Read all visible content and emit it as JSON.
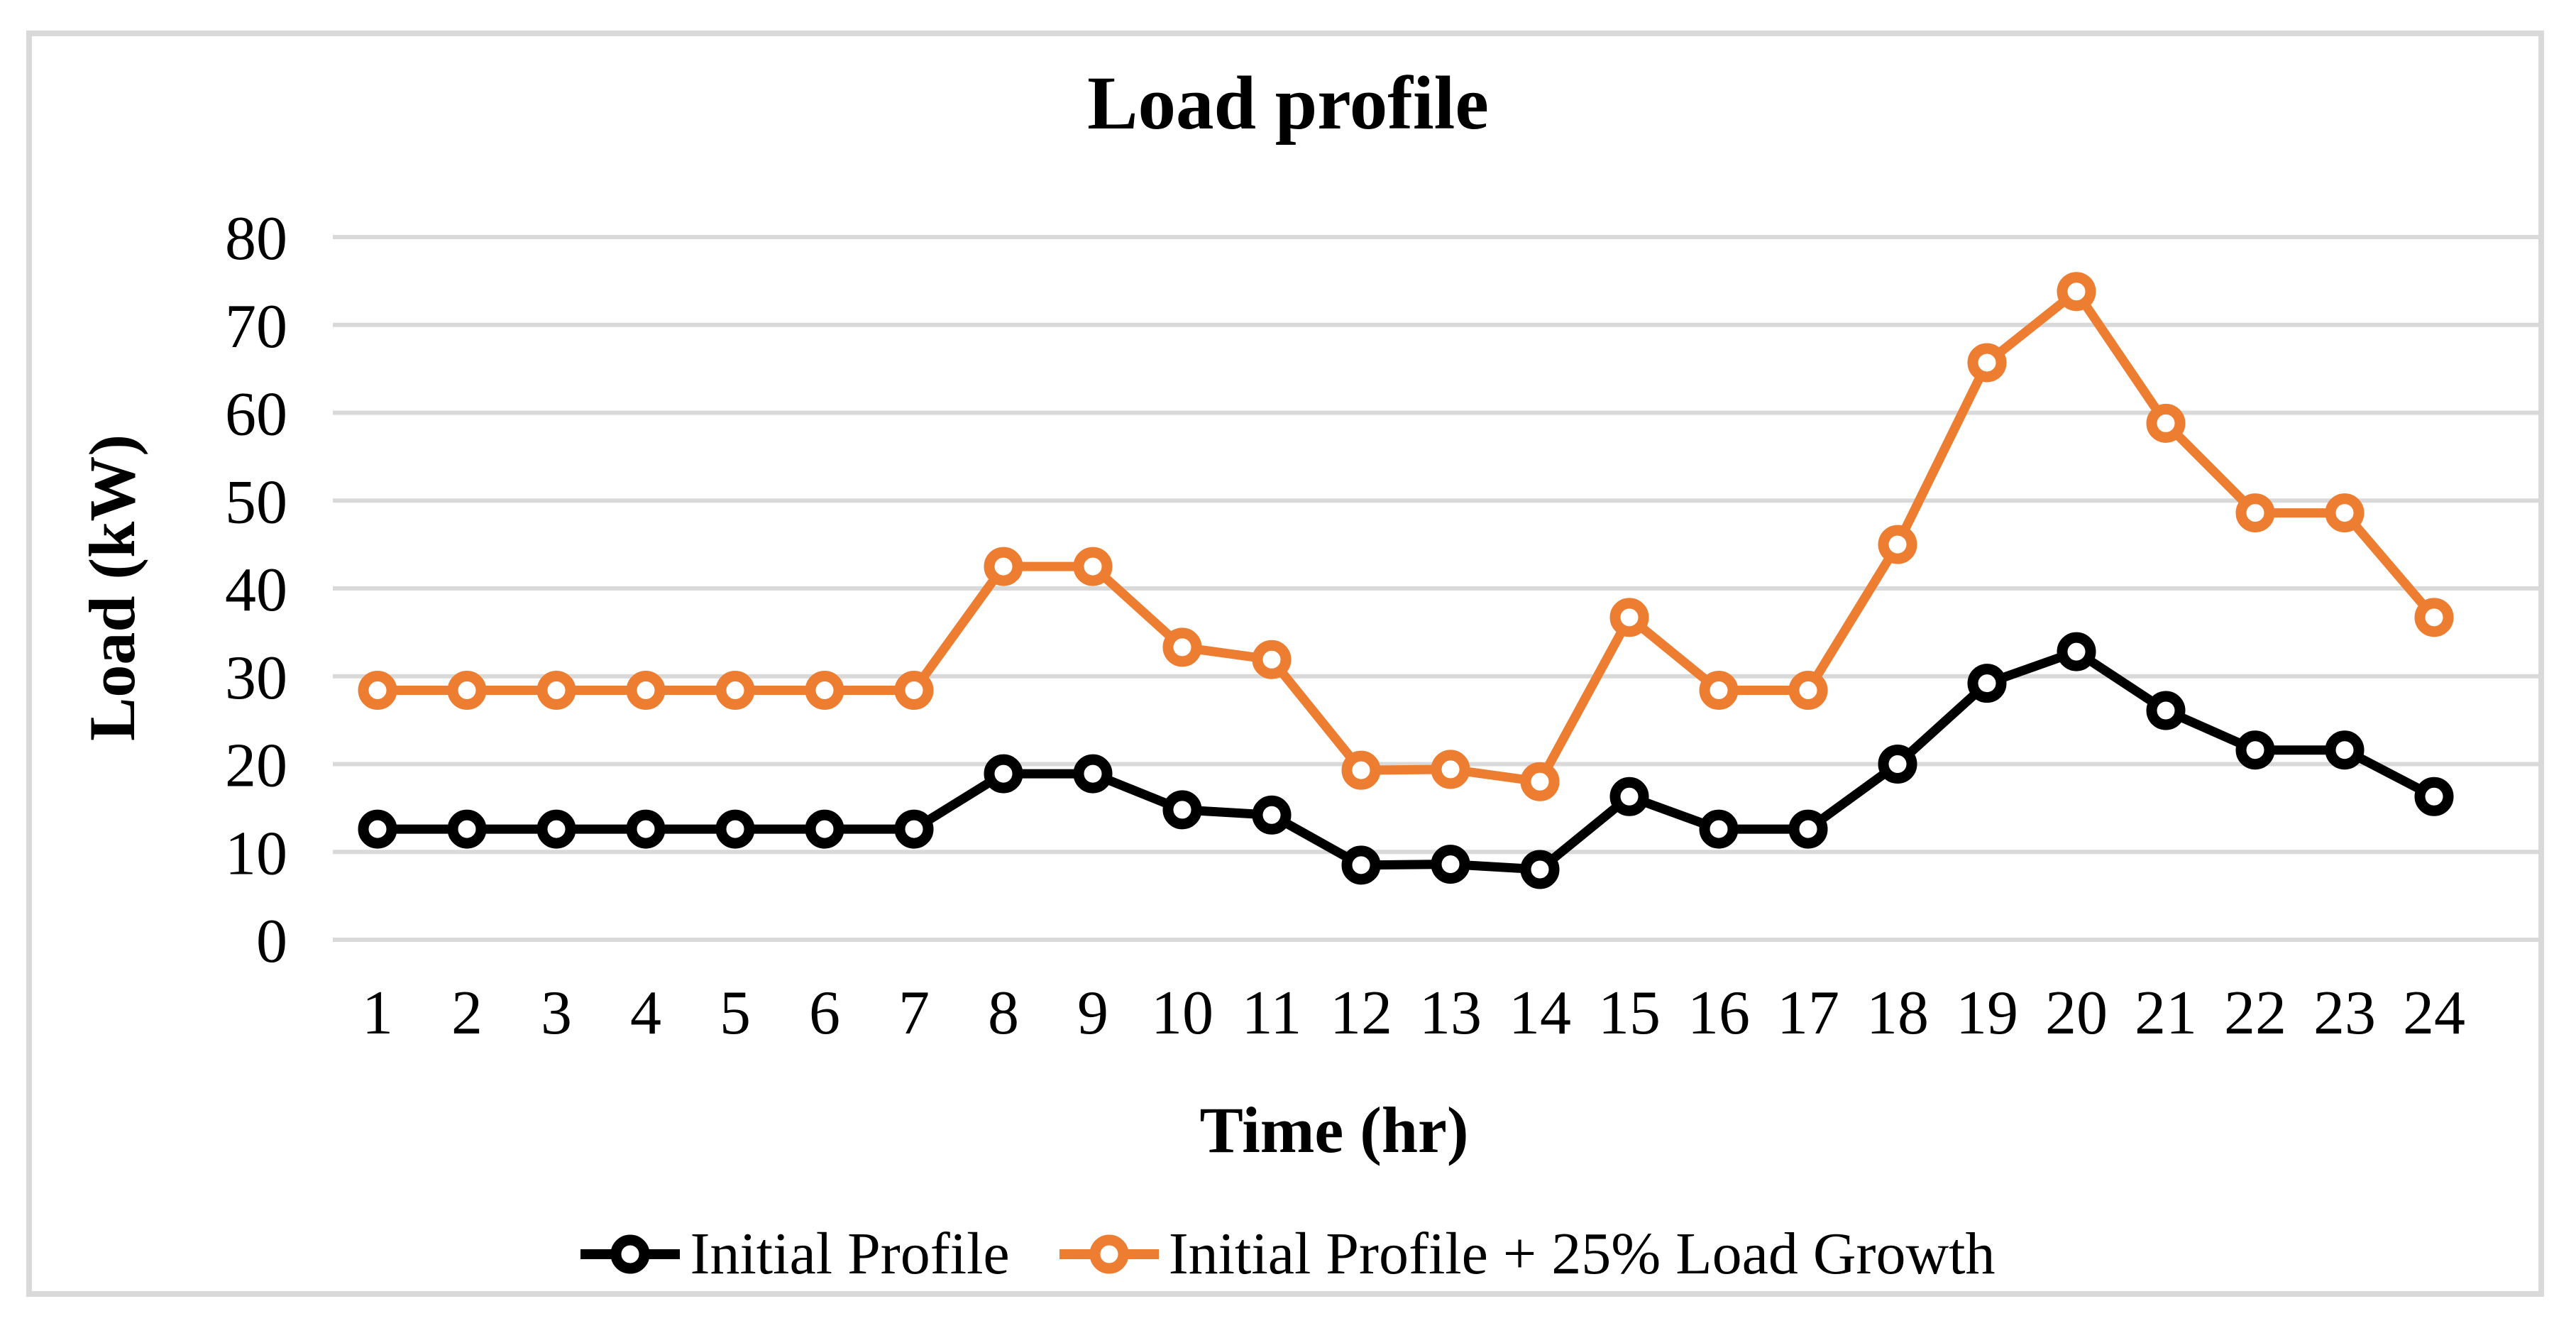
{
  "chart_data": {
    "type": "line",
    "title": "Load profile",
    "xlabel": "Time (hr)",
    "ylabel": "Load (kW)",
    "categories": [
      1,
      2,
      3,
      4,
      5,
      6,
      7,
      8,
      9,
      10,
      11,
      12,
      13,
      14,
      15,
      16,
      17,
      18,
      19,
      20,
      21,
      22,
      23,
      24
    ],
    "ylim": [
      0,
      80
    ],
    "yticks": [
      0,
      10,
      20,
      30,
      40,
      50,
      60,
      70,
      80
    ],
    "grid": true,
    "legend_position": "bottom",
    "colors": {
      "gridline": "#d9d9d9",
      "border": "#d9d9d9",
      "series1": "#000000",
      "series2": "#ED7D31"
    },
    "series": [
      {
        "name": "Initial Profile",
        "color": "#000000",
        "values": [
          12.6,
          12.6,
          12.6,
          12.6,
          12.6,
          12.6,
          12.6,
          18.9,
          18.9,
          14.8,
          14.2,
          8.5,
          8.6,
          8.0,
          16.3,
          12.6,
          12.6,
          20.0,
          29.2,
          32.8,
          26.1,
          21.6,
          21.6,
          16.3
        ]
      },
      {
        "name": "Initial Profile + 25% Load Growth",
        "color": "#ED7D31",
        "values": [
          28.4,
          28.4,
          28.4,
          28.4,
          28.4,
          28.4,
          28.4,
          42.5,
          42.5,
          33.3,
          31.9,
          19.3,
          19.4,
          18.0,
          36.7,
          28.4,
          28.4,
          45.0,
          65.7,
          73.8,
          58.8,
          48.6,
          48.6,
          36.7
        ]
      }
    ]
  }
}
